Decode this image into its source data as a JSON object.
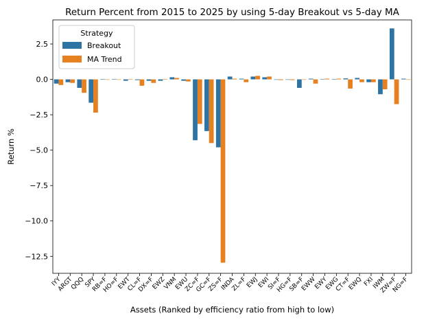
{
  "chart_data": {
    "type": "bar",
    "title": "Return Percent from 2015 to 2025 by using 5-day Breakout vs 5-day MA",
    "xlabel": "Assets (Ranked by efficiency ratio from high to low)",
    "ylabel": "Return %",
    "ylim": [
      -13.7,
      4.2
    ],
    "yticks": [
      2.5,
      0.0,
      -2.5,
      -5.0,
      -7.5,
      -10.0,
      -12.5
    ],
    "ytick_labels": [
      "2.5",
      "0.0",
      "−2.5",
      "−5.0",
      "−7.5",
      "−10.0",
      "−12.5"
    ],
    "grid": false,
    "legend": {
      "title": "Strategy",
      "position": "top-left"
    },
    "categories": [
      "IYY",
      "ARGT",
      "QQQ",
      "SPY",
      "RB=F",
      "HO=F",
      "EWT",
      "CL=F",
      "DX=F",
      "EWZ",
      "VNM",
      "EWU",
      "ZC=F",
      "GC=F",
      "ZS=F",
      "INDA",
      "ZL=F",
      "EWJ",
      "EWI",
      "SI=F",
      "HG=F",
      "SB=F",
      "EWW",
      "EWY",
      "EWG",
      "CT=F",
      "EWQ",
      "FXI",
      "IWM",
      "ZW=F",
      "NG=F"
    ],
    "series": [
      {
        "name": "Breakout",
        "color": "#2d73a3",
        "values": [
          -0.3,
          -0.2,
          -0.6,
          -1.65,
          0.02,
          0.02,
          -0.1,
          -0.05,
          -0.1,
          -0.1,
          0.15,
          -0.1,
          -4.3,
          -3.65,
          -4.8,
          0.2,
          0.05,
          0.2,
          0.15,
          -0.02,
          -0.02,
          -0.6,
          0.05,
          0.03,
          0.03,
          0.07,
          0.1,
          -0.2,
          -1.05,
          3.6,
          0.05
        ]
      },
      {
        "name": "MA Trend",
        "color": "#e58120",
        "values": [
          -0.4,
          -0.25,
          -0.95,
          -2.35,
          -0.02,
          -0.02,
          0.02,
          -0.45,
          -0.25,
          0.02,
          0.1,
          -0.15,
          -3.15,
          -4.5,
          -12.95,
          0.05,
          -0.2,
          0.25,
          0.2,
          -0.05,
          -0.05,
          -0.03,
          -0.3,
          0.05,
          0.05,
          -0.65,
          -0.2,
          -0.2,
          -0.7,
          -1.75,
          -0.03
        ]
      }
    ]
  }
}
